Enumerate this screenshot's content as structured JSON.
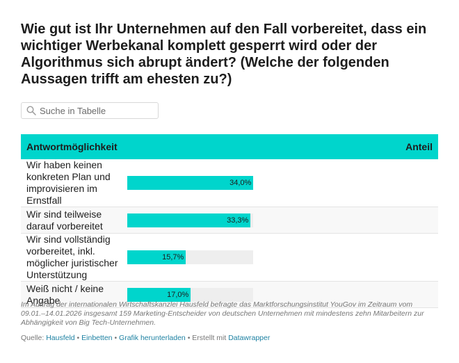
{
  "title": "Wie gut ist Ihr Unternehmen auf den Fall vorbereitet, dass ein wichtiger Werbekanal komplett gesperrt wird oder der Algorithmus sich abrupt ändert?  (Welche der folgenden Aussagen trifft am ehesten zu?)",
  "search": {
    "placeholder": "Suche in Tabelle"
  },
  "chart_data": {
    "type": "table",
    "columns": [
      "Antwortmöglichkeit",
      "Anteil"
    ],
    "rows": [
      {
        "label": "Wir haben keinen konkreten Plan und improvisieren im Ernstfall",
        "value": 34.0,
        "value_label": "34,0%"
      },
      {
        "label": "Wir sind teilweise darauf vorbereitet",
        "value": 33.3,
        "value_label": "33,3%"
      },
      {
        "label": "Wir sind vollständig vorbereitet, inkl. möglicher juristischer Unterstützung",
        "value": 15.7,
        "value_label": "15,7%"
      },
      {
        "label": "Weiß nicht / keine Angabe",
        "value": 17.0,
        "value_label": "17,0%"
      }
    ],
    "bar_max": 34.0,
    "bar_color": "#00d5cc",
    "track_color": "#eeeeee"
  },
  "notes": "Im Auftrag der internationalen Wirtschaftskanzlei Hausfeld befragte das Marktforschungsinstitut YouGov im Zeitraum vom 09.01.–14.01.2026 insgesamt 159 Marketing-Entscheider von deutschen Unternehmen mit mindestens zehn Mitarbeitern zur Abhängigkeit von Big Tech-Unternehmen.",
  "footer": {
    "source_prefix": "Quelle: ",
    "source_link": "Hausfeld",
    "sep1": " • ",
    "embed_link": "Einbetten",
    "sep2": " • ",
    "download_link": "Grafik herunterladen",
    "created_with": " • Erstellt mit ",
    "datawrapper_link": "Datawrapper"
  }
}
